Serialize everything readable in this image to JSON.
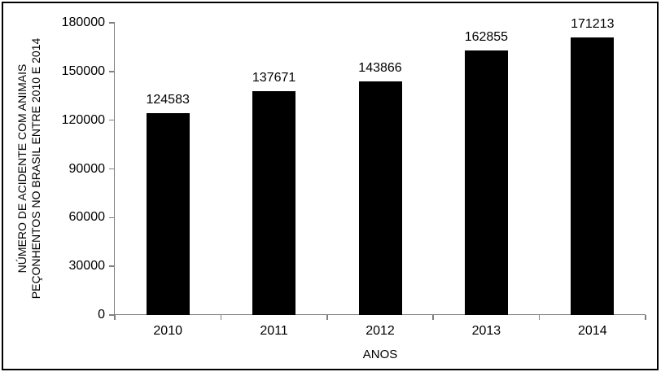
{
  "figure": {
    "background": "#ffffff",
    "border_color": "#000000"
  },
  "chart_data": {
    "type": "bar",
    "title": "",
    "categories": [
      "2010",
      "2011",
      "2012",
      "2013",
      "2014"
    ],
    "values": [
      124583,
      137671,
      143866,
      162855,
      171213
    ],
    "value_labels": [
      "124583",
      "137671",
      "143866",
      "162855",
      "171213"
    ],
    "xlabel": "ANOS",
    "ylabel": "NÚMERO DE ACIDENTE COM ANIMAIS PEÇONHENTOS NO BRASIL ENTRE 2010 E 2014",
    "ylabel_lines": [
      "NÚMERO DE ACIDENTE COM ANIMAIS",
      "PEÇONHENTOS NO BRASIL ENTRE 2010 E 2014"
    ],
    "yticks": [
      0,
      30000,
      60000,
      90000,
      120000,
      150000,
      180000
    ],
    "ytick_labels": [
      "0",
      "30000",
      "60000",
      "90000",
      "120000",
      "150000",
      "180000"
    ],
    "ylim": [
      0,
      180000
    ],
    "bar_color": "#000000",
    "axis_color": "#808080",
    "text_color": "#000000",
    "grid": false,
    "legend": null,
    "legend_position": "none"
  }
}
